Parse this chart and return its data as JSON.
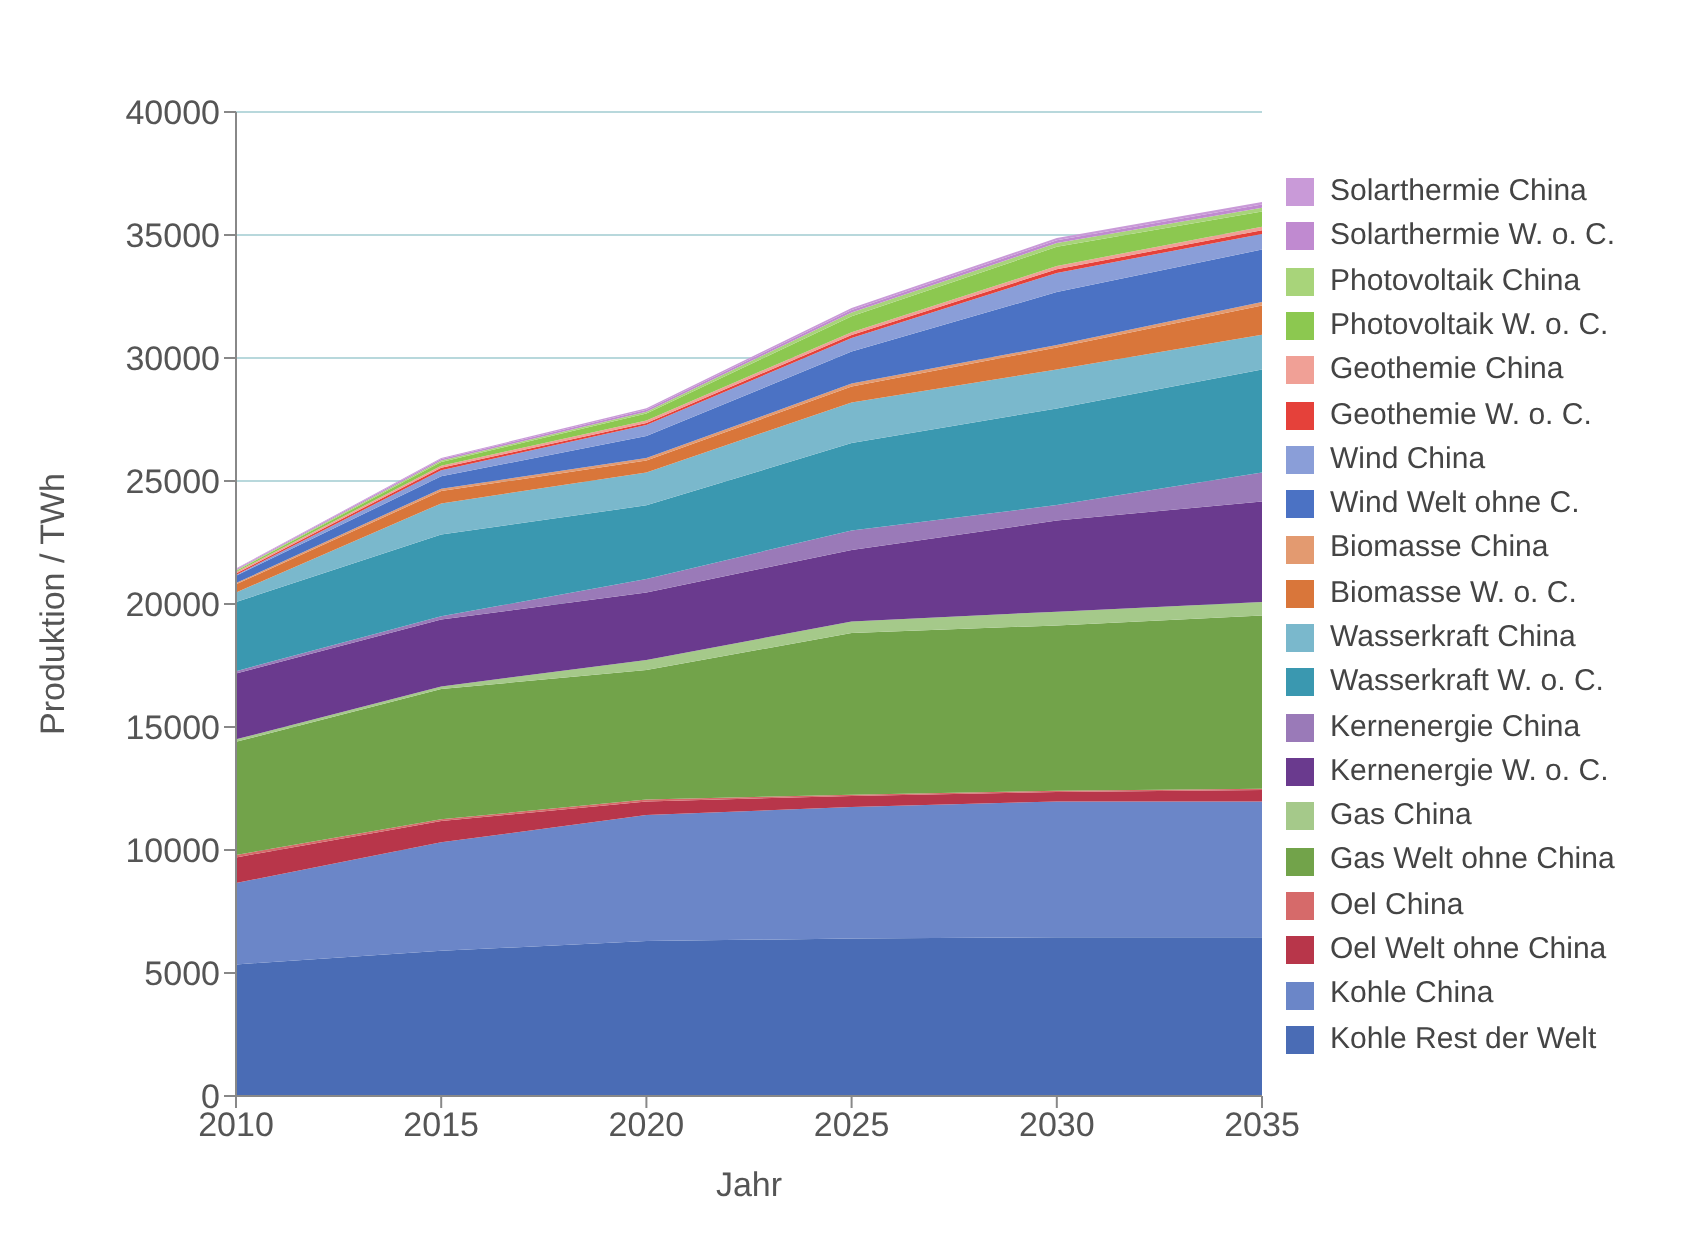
{
  "chart_data": {
    "type": "area",
    "stacked": true,
    "xlabel": "Jahr",
    "ylabel": "Produktion / TWh",
    "x": [
      2010,
      2015,
      2020,
      2025,
      2030,
      2035
    ],
    "xlim": [
      2010,
      2035
    ],
    "xticks": [
      2010,
      2015,
      2020,
      2025,
      2030,
      2035
    ],
    "ylim": [
      0,
      40000
    ],
    "yticks": [
      0,
      5000,
      10000,
      15000,
      20000,
      25000,
      30000,
      35000,
      40000
    ],
    "grid": "y",
    "legend": "right",
    "series": [
      {
        "name": "Kohle Rest der Welt",
        "color": "#4a6cb5",
        "values": [
          5350,
          5900,
          6300,
          6400,
          6450,
          6450
        ]
      },
      {
        "name": "Kohle China",
        "color": "#6b86c8",
        "values": [
          3310,
          4410,
          5120,
          5350,
          5520,
          5520
        ]
      },
      {
        "name": "Oel Welt ohne China",
        "color": "#b8364a",
        "values": [
          1040,
          870,
          550,
          450,
          390,
          470
        ]
      },
      {
        "name": "Oel China",
        "color": "#d66a6a",
        "values": [
          100,
          70,
          80,
          50,
          50,
          50
        ]
      },
      {
        "name": "Gas Welt ohne China",
        "color": "#72a34a",
        "values": [
          4600,
          5290,
          5270,
          6570,
          6720,
          7040
        ]
      },
      {
        "name": "Gas China",
        "color": "#a5c98a",
        "values": [
          100,
          110,
          400,
          470,
          560,
          550
        ]
      },
      {
        "name": "Kernenergie W. o. C.",
        "color": "#6a3a8e",
        "values": [
          2670,
          2720,
          2750,
          2910,
          3700,
          4090
        ]
      },
      {
        "name": "Kernenergie China",
        "color": "#9a7ab8",
        "values": [
          100,
          130,
          550,
          790,
          630,
          1180
        ]
      },
      {
        "name": "Wasserkraft W. o. C.",
        "color": "#3a98b0",
        "values": [
          2810,
          3330,
          2990,
          3550,
          3930,
          4180
        ]
      },
      {
        "name": "Wasserkraft China",
        "color": "#7ab8cc",
        "values": [
          390,
          1260,
          1340,
          1650,
          1580,
          1420
        ]
      },
      {
        "name": "Biomasse W. o. C.",
        "color": "#d9763a",
        "values": [
          330,
          500,
          480,
          650,
          900,
          1180
        ]
      },
      {
        "name": "Biomasse China",
        "color": "#e39a70",
        "values": [
          50,
          100,
          100,
          120,
          100,
          150
        ]
      },
      {
        "name": "Wind Welt ohne C.",
        "color": "#4b72c4",
        "values": [
          300,
          500,
          900,
          1300,
          2150,
          2130
        ]
      },
      {
        "name": "Wind China",
        "color": "#8a9ed8",
        "values": [
          30,
          250,
          450,
          550,
          780,
          630
        ]
      },
      {
        "name": "Geothemie W. o. C.",
        "color": "#e5413a",
        "values": [
          60,
          100,
          80,
          120,
          150,
          150
        ]
      },
      {
        "name": "Geothemie China",
        "color": "#f0a096",
        "values": [
          60,
          80,
          100,
          120,
          130,
          150
        ]
      },
      {
        "name": "Photovoltaik W. o. C.",
        "color": "#8cc850",
        "values": [
          45,
          150,
          280,
          650,
          780,
          620
        ]
      },
      {
        "name": "Photovoltaik China",
        "color": "#a8d47a",
        "values": [
          30,
          60,
          80,
          150,
          150,
          150
        ]
      },
      {
        "name": "Solarthermie W. o. C.",
        "color": "#c08ad0",
        "values": [
          40,
          60,
          80,
          100,
          120,
          130
        ]
      },
      {
        "name": "Solarthermie China",
        "color": "#c99ad8",
        "values": [
          30,
          40,
          60,
          80,
          90,
          100
        ]
      }
    ]
  }
}
